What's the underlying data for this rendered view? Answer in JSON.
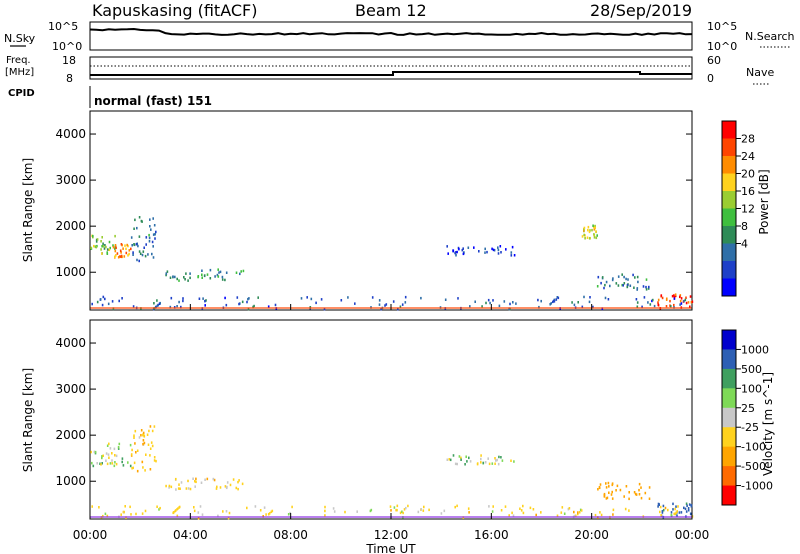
{
  "header": {
    "station": "Kapuskasing (fitACF)",
    "beam": "Beam 12",
    "date": "28/Sep/2019"
  },
  "top_panels": {
    "nsky_label": "N.Sky",
    "nsearch_label": "N.Search",
    "freq_label_line1": "Freq.",
    "freq_label_line2": "[MHz]",
    "nave_label": "Nave",
    "cpid_label": "CPID",
    "cpid_value": "normal (fast) 151",
    "noise_ticks": [
      "10^5",
      "10^0"
    ],
    "freq_ticks": [
      "18",
      "8"
    ],
    "nave_ticks": [
      "60",
      "0"
    ]
  },
  "chart_data": [
    {
      "type": "heatmap",
      "panel": "power",
      "ylabel": "Slant Range [km]",
      "y_ticks": [
        "4000",
        "3000",
        "2000",
        "1000"
      ],
      "ylim": [
        180,
        4500
      ],
      "colorbar_label": "Power [dB]",
      "colorbar_ticks": [
        "28",
        "24",
        "20",
        "16",
        "12",
        "8",
        "4"
      ],
      "colorbar_colors": [
        "#ff0000",
        "#ff4500",
        "#ff8c00",
        "#ffd21e",
        "#9acd32",
        "#3fbf3f",
        "#2e8b57",
        "#2f6fa8",
        "#1e40c8",
        "#0000ff"
      ],
      "xlim_hours": [
        0,
        24
      ],
      "regions": [
        {
          "t": [
            0.0,
            1.0
          ],
          "r": [
            1350,
            1800
          ],
          "power": 16
        },
        {
          "t": [
            0.9,
            1.6
          ],
          "r": [
            1300,
            1600
          ],
          "power": 24
        },
        {
          "t": [
            1.6,
            2.6
          ],
          "r": [
            1200,
            2200
          ],
          "power": 10
        },
        {
          "t": [
            3.0,
            6.1
          ],
          "r": [
            800,
            1050
          ],
          "power": 12
        },
        {
          "t": [
            14.2,
            16.9
          ],
          "r": [
            1350,
            1550
          ],
          "power": 6
        },
        {
          "t": [
            19.6,
            20.2
          ],
          "r": [
            1700,
            2000
          ],
          "power": 20
        },
        {
          "t": [
            20.2,
            22.3
          ],
          "r": [
            600,
            950
          ],
          "power": 10
        },
        {
          "t": [
            22.6,
            24.0
          ],
          "r": [
            200,
            500
          ],
          "power": 28
        },
        {
          "t": [
            0.0,
            24.0
          ],
          "r": [
            180,
            450
          ],
          "power": 8
        }
      ]
    },
    {
      "type": "heatmap",
      "panel": "velocity",
      "xlabel": "Time UT",
      "ylabel": "Slant Range [km]",
      "x_ticks": [
        "00:00",
        "04:00",
        "08:00",
        "12:00",
        "16:00",
        "20:00",
        "00:00"
      ],
      "y_ticks": [
        "4000",
        "3000",
        "2000",
        "1000"
      ],
      "ylim": [
        180,
        4500
      ],
      "colorbar_label": "Velocity [m s^-1]",
      "colorbar_ticks": [
        "1000",
        "500",
        "100",
        "25",
        "-25",
        "-100",
        "-500",
        "-1000"
      ],
      "colorbar_colors": [
        "#0000cd",
        "#2d5fb4",
        "#3f9f5f",
        "#7ed957",
        "#c8c8c8",
        "#ffd21e",
        "#ffa500",
        "#ff6a00",
        "#ff0000"
      ],
      "xlim_hours": [
        0,
        24
      ],
      "regions": [
        {
          "t": [
            0.0,
            1.6
          ],
          "r": [
            1300,
            1800
          ],
          "velocity": 0
        },
        {
          "t": [
            1.6,
            2.6
          ],
          "r": [
            1200,
            2200
          ],
          "velocity": -80
        },
        {
          "t": [
            3.0,
            6.1
          ],
          "r": [
            800,
            1050
          ],
          "velocity": -60
        },
        {
          "t": [
            14.2,
            16.9
          ],
          "r": [
            1350,
            1550
          ],
          "velocity": 0
        },
        {
          "t": [
            20.2,
            22.3
          ],
          "r": [
            600,
            950
          ],
          "velocity": -200
        },
        {
          "t": [
            22.6,
            24.0
          ],
          "r": [
            200,
            500
          ],
          "velocity": 150
        },
        {
          "t": [
            0.0,
            24.0
          ],
          "r": [
            180,
            450
          ],
          "velocity": -50
        }
      ]
    }
  ]
}
